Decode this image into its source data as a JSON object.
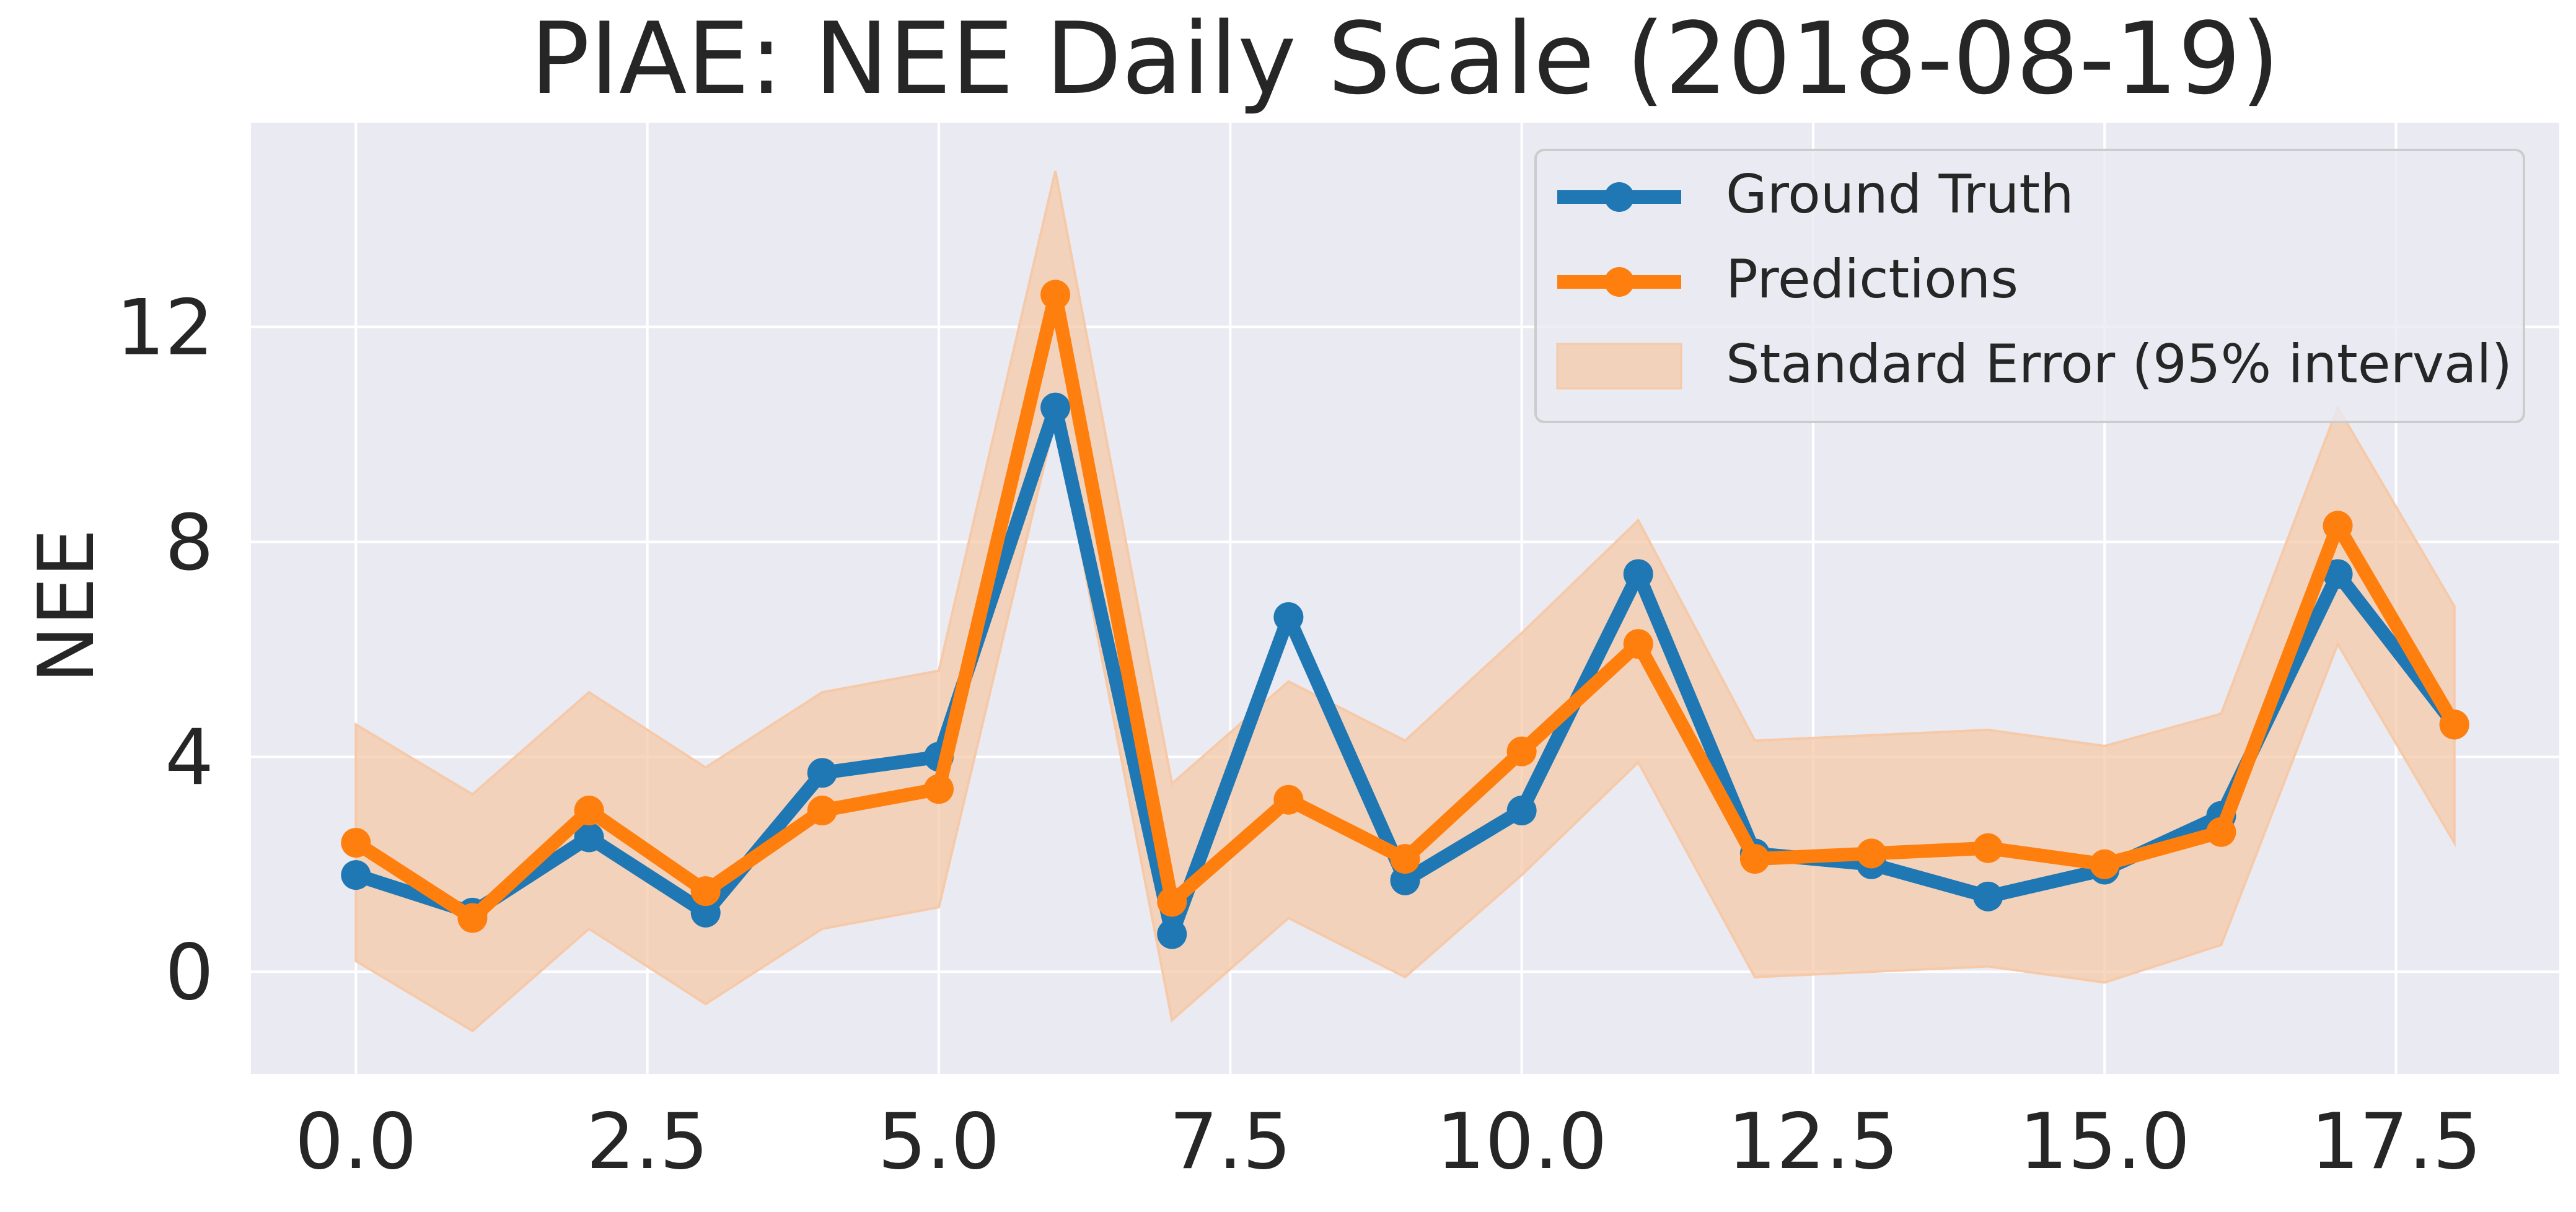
{
  "chart_data": {
    "type": "line",
    "title": "PIAE: NEE Daily Scale (2018-08-19)",
    "xlabel": "",
    "ylabel": "NEE",
    "xlim": [
      -0.9,
      18.9
    ],
    "ylim": [
      -1.9,
      15.8
    ],
    "xticks": [
      0.0,
      2.5,
      5.0,
      7.5,
      10.0,
      12.5,
      15.0,
      17.5
    ],
    "xtick_labels": [
      "0.0",
      "2.5",
      "5.0",
      "7.5",
      "10.0",
      "12.5",
      "15.0",
      "17.5"
    ],
    "yticks": [
      0,
      4,
      8,
      12
    ],
    "ytick_labels": [
      "0",
      "4",
      "8",
      "12"
    ],
    "grid": true,
    "legend_position": "upper-right",
    "x": [
      0,
      1,
      2,
      3,
      4,
      5,
      6,
      7,
      8,
      9,
      10,
      11,
      12,
      13,
      14,
      15,
      16,
      17,
      18
    ],
    "series": [
      {
        "name": "Ground Truth",
        "color": "#1f77b4",
        "values": [
          1.8,
          1.1,
          2.5,
          1.1,
          3.7,
          4.0,
          10.5,
          0.7,
          6.6,
          1.7,
          3.0,
          7.4,
          2.2,
          2.0,
          1.4,
          1.9,
          2.9,
          7.4,
          4.6
        ]
      },
      {
        "name": "Predictions",
        "color": "#ff7f0e",
        "values": [
          2.4,
          1.0,
          3.0,
          1.5,
          3.0,
          3.4,
          12.6,
          1.3,
          3.2,
          2.1,
          4.1,
          6.1,
          2.1,
          2.2,
          2.3,
          2.0,
          2.6,
          8.3,
          4.6
        ]
      }
    ],
    "band": {
      "name": "Standard Error (95% interval)",
      "color": "#ff7f0e",
      "lower": [
        0.2,
        -1.1,
        0.8,
        -0.6,
        0.8,
        1.2,
        10.3,
        -0.9,
        1.0,
        -0.1,
        1.8,
        3.9,
        -0.1,
        0.0,
        0.1,
        -0.2,
        0.5,
        6.1,
        2.4
      ],
      "upper": [
        4.6,
        3.3,
        5.2,
        3.8,
        5.2,
        5.6,
        14.9,
        3.5,
        5.4,
        4.3,
        6.3,
        8.4,
        4.3,
        4.4,
        4.5,
        4.2,
        4.8,
        10.5,
        6.8
      ]
    }
  }
}
